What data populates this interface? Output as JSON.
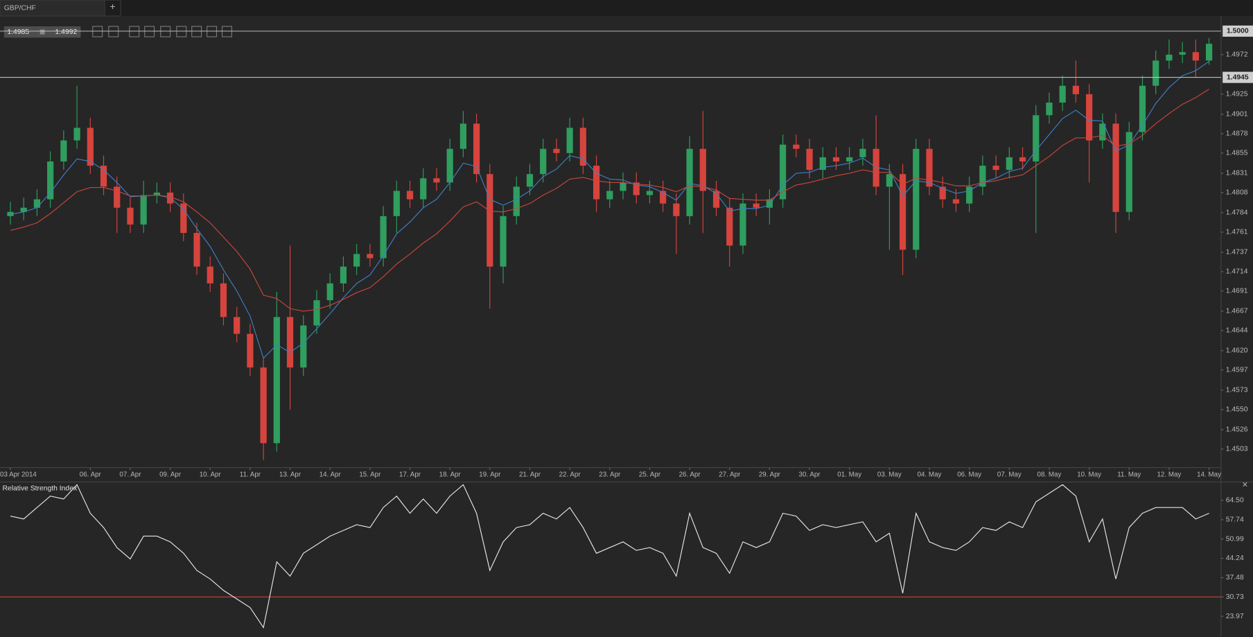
{
  "tab": {
    "title": "GBP/CHF",
    "add": "+"
  },
  "quote": {
    "bid": "1.4985",
    "ask": "1.4992"
  },
  "chart_data": [
    {
      "type": "candlestick",
      "categories": [
        "03 Apr 2014",
        null,
        null,
        null,
        null,
        null,
        "06. Apr",
        null,
        null,
        "07. Apr",
        null,
        null,
        "09. Apr",
        null,
        null,
        "10. Apr",
        null,
        null,
        "11. Apr",
        null,
        null,
        "13. Apr",
        null,
        null,
        "14. Apr",
        null,
        null,
        "15. Apr",
        null,
        null,
        "17. Apr",
        null,
        null,
        "18. Apr",
        null,
        null,
        "19. Apr",
        null,
        null,
        "21. Apr",
        null,
        null,
        "22. Apr",
        null,
        null,
        "23. Apr",
        null,
        null,
        "25. Apr",
        null,
        null,
        "26. Apr",
        null,
        null,
        "27. Apr",
        null,
        null,
        "29. Apr",
        null,
        null,
        "30. Apr",
        null,
        null,
        "01. May",
        null,
        null,
        "03. May",
        null,
        null,
        "04. May",
        null,
        null,
        "06. May",
        null,
        null,
        "07. May",
        null,
        null,
        "08. May",
        null,
        null,
        "10. May",
        null,
        null,
        "11. May",
        null,
        null,
        "12. May",
        null,
        null,
        "14. May"
      ],
      "open": [
        1.478,
        1.4785,
        1.479,
        1.48,
        1.4845,
        1.487,
        1.4885,
        1.484,
        1.4815,
        1.479,
        1.477,
        1.4805,
        1.4808,
        1.4795,
        1.476,
        1.472,
        1.47,
        1.466,
        1.464,
        1.46,
        1.451,
        1.466,
        1.46,
        1.465,
        1.468,
        1.47,
        1.472,
        1.4735,
        1.473,
        1.478,
        1.481,
        1.48,
        1.4825,
        1.482,
        1.486,
        1.489,
        1.483,
        1.472,
        1.478,
        1.4815,
        1.483,
        1.486,
        1.4855,
        1.4885,
        1.484,
        1.48,
        1.481,
        1.482,
        1.4805,
        1.481,
        1.4795,
        1.478,
        1.486,
        1.481,
        1.479,
        1.4745,
        1.4795,
        1.479,
        1.48,
        1.4865,
        1.486,
        1.4835,
        1.485,
        1.4845,
        1.485,
        1.486,
        1.4815,
        1.483,
        1.474,
        1.486,
        1.4815,
        1.48,
        1.4795,
        1.4815,
        1.484,
        1.4835,
        1.485,
        1.4845,
        1.49,
        1.4915,
        1.4935,
        1.4925,
        1.487,
        1.489,
        1.4785,
        1.488,
        1.4935,
        1.4965,
        1.4972,
        1.4975,
        1.4965
      ],
      "high": [
        1.4797,
        1.4802,
        1.4812,
        1.4857,
        1.4882,
        1.4935,
        1.4897,
        1.4852,
        1.4827,
        1.4802,
        1.4822,
        1.482,
        1.482,
        1.4807,
        1.4772,
        1.4732,
        1.4712,
        1.4672,
        1.4652,
        1.4612,
        1.469,
        1.4745,
        1.4662,
        1.4692,
        1.4712,
        1.4732,
        1.4747,
        1.4747,
        1.4792,
        1.4822,
        1.4822,
        1.4837,
        1.4837,
        1.4872,
        1.4905,
        1.4902,
        1.4842,
        1.4792,
        1.4827,
        1.4842,
        1.4872,
        1.4872,
        1.4897,
        1.4897,
        1.4852,
        1.4822,
        1.4832,
        1.4832,
        1.4822,
        1.4822,
        1.4807,
        1.4875,
        1.4905,
        1.4822,
        1.4802,
        1.4807,
        1.4807,
        1.4812,
        1.4877,
        1.4877,
        1.4872,
        1.4862,
        1.4862,
        1.4862,
        1.4872,
        1.49,
        1.4842,
        1.4842,
        1.4872,
        1.4872,
        1.4827,
        1.4812,
        1.4827,
        1.4852,
        1.4852,
        1.4862,
        1.4862,
        1.4912,
        1.4927,
        1.4947,
        1.4965,
        1.4937,
        1.4902,
        1.4902,
        1.4892,
        1.4947,
        1.4977,
        1.499,
        1.4987,
        1.499,
        1.4992
      ],
      "low": [
        1.477,
        1.4775,
        1.478,
        1.479,
        1.4835,
        1.486,
        1.483,
        1.4805,
        1.476,
        1.476,
        1.476,
        1.4795,
        1.4785,
        1.475,
        1.471,
        1.469,
        1.465,
        1.463,
        1.459,
        1.449,
        1.45,
        1.455,
        1.459,
        1.464,
        1.467,
        1.469,
        1.471,
        1.472,
        1.472,
        1.476,
        1.479,
        1.479,
        1.481,
        1.481,
        1.485,
        1.482,
        1.467,
        1.47,
        1.477,
        1.4805,
        1.482,
        1.4845,
        1.4845,
        1.483,
        1.4785,
        1.479,
        1.48,
        1.4795,
        1.4795,
        1.4785,
        1.4735,
        1.477,
        1.476,
        1.478,
        1.472,
        1.4735,
        1.478,
        1.477,
        1.479,
        1.485,
        1.4825,
        1.4825,
        1.4835,
        1.4835,
        1.484,
        1.4805,
        1.474,
        1.471,
        1.473,
        1.4805,
        1.479,
        1.4785,
        1.4785,
        1.4805,
        1.4825,
        1.4825,
        1.4835,
        1.476,
        1.489,
        1.4905,
        1.4915,
        1.482,
        1.486,
        1.476,
        1.4775,
        1.487,
        1.4925,
        1.4955,
        1.4962,
        1.4945,
        1.496
      ],
      "close": [
        1.4785,
        1.479,
        1.48,
        1.4845,
        1.487,
        1.4885,
        1.484,
        1.4815,
        1.479,
        1.477,
        1.4805,
        1.4808,
        1.4795,
        1.476,
        1.472,
        1.47,
        1.466,
        1.464,
        1.46,
        1.451,
        1.466,
        1.46,
        1.465,
        1.468,
        1.47,
        1.472,
        1.4735,
        1.473,
        1.478,
        1.481,
        1.48,
        1.4825,
        1.482,
        1.486,
        1.489,
        1.483,
        1.472,
        1.478,
        1.4815,
        1.483,
        1.486,
        1.4855,
        1.4885,
        1.484,
        1.48,
        1.481,
        1.482,
        1.4805,
        1.481,
        1.4795,
        1.478,
        1.486,
        1.481,
        1.479,
        1.4745,
        1.4795,
        1.479,
        1.48,
        1.4865,
        1.486,
        1.4835,
        1.485,
        1.4845,
        1.485,
        1.486,
        1.4815,
        1.483,
        1.474,
        1.486,
        1.4815,
        1.48,
        1.4795,
        1.4815,
        1.484,
        1.4835,
        1.485,
        1.4845,
        1.49,
        1.4915,
        1.4935,
        1.4925,
        1.487,
        1.489,
        1.4785,
        1.488,
        1.4935,
        1.4965,
        1.4972,
        1.4975,
        1.4965,
        1.4985
      ],
      "up_color": "#2f9e5e",
      "down_color": "#d6443d",
      "series": [
        {
          "color": "#3d7fc4",
          "values": [
            1.4782,
            1.4785,
            1.479,
            1.4808,
            1.4829,
            1.4848,
            1.4845,
            1.4835,
            1.482,
            1.4803,
            1.4804,
            1.4805,
            1.4802,
            1.4788,
            1.4765,
            1.4744,
            1.4716,
            1.4691,
            1.4661,
            1.4611,
            1.4627,
            1.4618,
            1.4629,
            1.4646,
            1.4664,
            1.4683,
            1.47,
            1.471,
            1.4733,
            1.4759,
            1.4773,
            1.479,
            1.48,
            1.482,
            1.4843,
            1.4839,
            1.48,
            1.4793,
            1.48,
            1.481,
            1.4827,
            1.4836,
            1.4852,
            1.4848,
            1.4831,
            1.4824,
            1.4823,
            1.4817,
            1.4815,
            1.4808,
            1.4799,
            1.4819,
            1.4816,
            1.4807,
            1.4786,
            1.4789,
            1.4789,
            1.4793,
            1.4817,
            1.4831,
            1.4832,
            1.4838,
            1.484,
            1.4843,
            1.4849,
            1.4838,
            1.4835,
            1.4804,
            1.4822,
            1.482,
            1.4813,
            1.4807,
            1.481,
            1.482,
            1.4825,
            1.4833,
            1.4837,
            1.4858,
            1.4877,
            1.4896,
            1.4906,
            1.4894,
            1.4893,
            1.4857,
            1.4865,
            1.4888,
            1.4914,
            1.4933,
            1.4947,
            1.4953,
            1.4964
          ]
        },
        {
          "color": "#c9453c",
          "values": [
            1.4763,
            1.4767,
            1.4772,
            1.4783,
            1.4796,
            1.4809,
            1.4814,
            1.4814,
            1.481,
            1.4804,
            1.4804,
            1.4805,
            1.4803,
            1.4797,
            1.4785,
            1.4772,
            1.4755,
            1.4738,
            1.4717,
            1.4686,
            1.4682,
            1.467,
            1.4667,
            1.4669,
            1.4674,
            1.4681,
            1.4689,
            1.4695,
            1.4708,
            1.4723,
            1.4735,
            1.4748,
            1.4759,
            1.4774,
            1.4791,
            1.4797,
            1.4786,
            1.4785,
            1.4789,
            1.4795,
            1.4805,
            1.4813,
            1.4824,
            1.4826,
            1.4822,
            1.482,
            1.482,
            1.4818,
            1.4817,
            1.4814,
            1.4809,
            1.4816,
            1.4815,
            1.4811,
            1.4801,
            1.48,
            1.4799,
            1.4799,
            1.4809,
            1.4817,
            1.482,
            1.4824,
            1.4828,
            1.4831,
            1.4835,
            1.4832,
            1.4832,
            1.4818,
            1.4825,
            1.4823,
            1.482,
            1.4816,
            1.4816,
            1.482,
            1.4822,
            1.4826,
            1.4829,
            1.484,
            1.4851,
            1.4864,
            1.4873,
            1.4873,
            1.4876,
            1.4863,
            1.4866,
            1.4876,
            1.489,
            1.4902,
            1.4913,
            1.4921,
            1.4931
          ]
        }
      ],
      "ylim": [
        1.4481,
        1.5018
      ],
      "yticks": [
        1.4972,
        1.4925,
        1.4901,
        1.4878,
        1.4855,
        1.4831,
        1.4808,
        1.4784,
        1.4761,
        1.4737,
        1.4714,
        1.4691,
        1.4667,
        1.4644,
        {
          "value": 1.462,
          "label": "1.4620"
        },
        1.4597,
        1.4573,
        {
          "value": 1.455,
          "label": "1.4550"
        },
        1.4526,
        1.4503
      ],
      "levels": [
        {
          "value": 1.5,
          "label": "1.5000"
        },
        {
          "value": 1.4945,
          "label": "1.4945"
        }
      ]
    },
    {
      "type": "line",
      "title": "Relative Strength Index",
      "close": "×",
      "color": "#e6e6e6",
      "values": [
        59,
        58,
        62,
        66,
        65,
        70,
        60,
        55,
        48,
        44,
        52,
        52,
        50,
        46,
        40,
        37,
        33,
        30,
        27,
        20,
        43,
        38,
        46,
        49,
        52,
        54,
        56,
        55,
        62,
        66,
        60,
        65,
        60,
        66,
        70,
        60,
        40,
        50,
        55,
        56,
        60,
        58,
        62,
        55,
        46,
        48,
        50,
        47,
        48,
        46,
        38,
        60,
        48,
        46,
        39,
        50,
        48,
        50,
        60,
        59,
        54,
        56,
        55,
        56,
        57,
        50,
        53,
        32,
        60,
        50,
        48,
        47,
        50,
        55,
        54,
        57,
        55,
        64,
        67,
        70,
        66,
        50,
        58,
        37,
        55,
        60,
        62,
        62,
        62,
        58,
        60
      ],
      "ylim": [
        16.7,
        70.4
      ],
      "yticks": [
        {
          "value": 64.5,
          "label": "64.50"
        },
        57.74,
        50.99,
        44.24,
        37.48,
        30.73,
        23.97
      ],
      "level": 30.73,
      "level_color": "#c9453c"
    }
  ]
}
